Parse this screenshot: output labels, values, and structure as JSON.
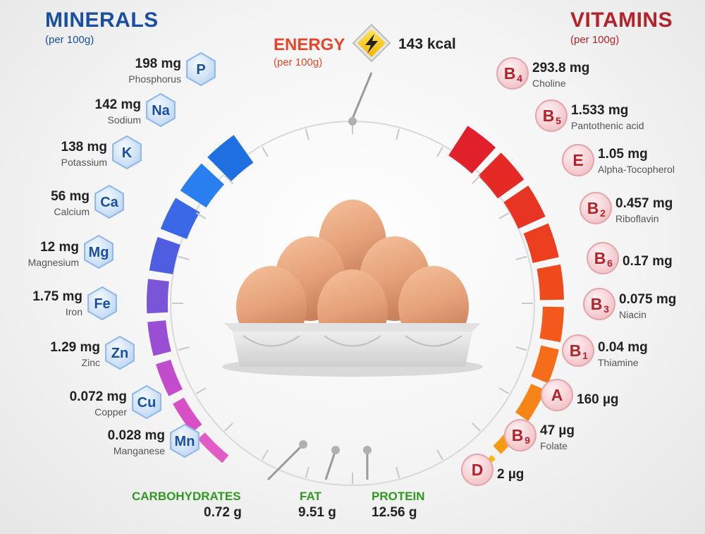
{
  "minerals": {
    "title": "MINERALS",
    "subtitle": "(per 100g)",
    "items": [
      {
        "symbol": "P",
        "amount": "198 mg",
        "name": "Phosphorus"
      },
      {
        "symbol": "Na",
        "amount": "142 mg",
        "name": "Sodium"
      },
      {
        "symbol": "K",
        "amount": "138 mg",
        "name": "Potassium"
      },
      {
        "symbol": "Ca",
        "amount": "56 mg",
        "name": "Calcium"
      },
      {
        "symbol": "Mg",
        "amount": "12 mg",
        "name": "Magnesium"
      },
      {
        "symbol": "Fe",
        "amount": "1.75 mg",
        "name": "Iron"
      },
      {
        "symbol": "Zn",
        "amount": "1.29 mg",
        "name": "Zinc"
      },
      {
        "symbol": "Cu",
        "amount": "0.072 mg",
        "name": "Copper"
      },
      {
        "symbol": "Mn",
        "amount": "0.028 mg",
        "name": "Manganese"
      }
    ]
  },
  "vitamins": {
    "title": "VITAMINS",
    "subtitle": "(per 100g)",
    "items": [
      {
        "letter": "B",
        "sub": "4",
        "amount": "293.8 mg",
        "name": "Choline"
      },
      {
        "letter": "B",
        "sub": "5",
        "amount": "1.533 mg",
        "name": "Pantothenic acid"
      },
      {
        "letter": "E",
        "sub": "",
        "amount": "1.05 mg",
        "name": "Alpha-Tocopherol"
      },
      {
        "letter": "B",
        "sub": "2",
        "amount": "0.457 mg",
        "name": "Riboflavin"
      },
      {
        "letter": "B",
        "sub": "6",
        "amount": "0.17 mg",
        "name": ""
      },
      {
        "letter": "B",
        "sub": "3",
        "amount": "0.075 mg",
        "name": "Niacin"
      },
      {
        "letter": "B",
        "sub": "1",
        "amount": "0.04 mg",
        "name": "Thiamine"
      },
      {
        "letter": "A",
        "sub": "",
        "amount": "160 µg",
        "name": ""
      },
      {
        "letter": "B",
        "sub": "9",
        "amount": "47 µg",
        "name": "Folate"
      },
      {
        "letter": "D",
        "sub": "",
        "amount": "2 µg",
        "name": ""
      }
    ]
  },
  "energy": {
    "title": "ENERGY",
    "subtitle": "(per 100g)",
    "value": "143 kcal"
  },
  "macros": {
    "carbohydrates": {
      "label": "CARBOHYDRATES",
      "value": "0.72 g"
    },
    "fat": {
      "label": "FAT",
      "value": "9.51 g"
    },
    "protein": {
      "label": "PROTEIN",
      "value": "12.56 g"
    }
  },
  "colors": {
    "minerals_title": "#1a4fa0",
    "vitamins_title": "#b3232a",
    "energy": "#e8452b",
    "macro_label": "#2f9a1f",
    "hex_fill": "#dbeaf9",
    "hex_text": "#1a4fa0",
    "circle_fill": "#f8d9dc",
    "circle_text": "#b3232a"
  },
  "icons": {
    "energy": "lightning-bolt-icon",
    "food": "eggs-in-carton-illustration"
  }
}
